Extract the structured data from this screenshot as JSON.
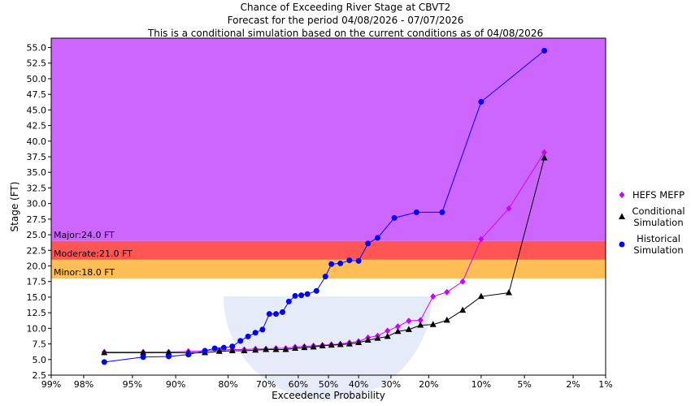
{
  "chart_data": {
    "type": "line",
    "title_lines": [
      "Chance of Exceeding River Stage at CBVT2",
      "Forecast for the period 04/08/2026 - 07/07/2026",
      "This is a conditional simulation based on the current conditions as of 04/08/2026"
    ],
    "xlabel": "Exceedence Probability",
    "ylabel": "Stage (FT)",
    "x_scale": "normal-probability (reversed)",
    "x_ticks": [
      {
        "p": 99,
        "label": "99%"
      },
      {
        "p": 98,
        "label": "98%"
      },
      {
        "p": 95,
        "label": "95%"
      },
      {
        "p": 90,
        "label": "90%"
      },
      {
        "p": 80,
        "label": "80%"
      },
      {
        "p": 70,
        "label": "70%"
      },
      {
        "p": 60,
        "label": "60%"
      },
      {
        "p": 50,
        "label": "50%"
      },
      {
        "p": 40,
        "label": "40%"
      },
      {
        "p": 30,
        "label": "30%"
      },
      {
        "p": 20,
        "label": "20%"
      },
      {
        "p": 10,
        "label": "10%"
      },
      {
        "p": 5,
        "label": "5%"
      },
      {
        "p": 2,
        "label": "2%"
      },
      {
        "p": 1,
        "label": "1%"
      }
    ],
    "ylim": [
      2.5,
      56.5
    ],
    "y_ticks": [
      "2.5",
      "5.0",
      "7.5",
      "10.0",
      "12.5",
      "15.0",
      "17.5",
      "20.0",
      "22.5",
      "25.0",
      "27.5",
      "30.0",
      "32.5",
      "35.0",
      "37.5",
      "40.0",
      "42.5",
      "45.0",
      "47.5",
      "50.0",
      "52.5",
      "55.0"
    ],
    "flood_bands": [
      {
        "label": "Minor:18.0 FT",
        "from": 18.0,
        "to": 21.0,
        "color": "#ffbe55"
      },
      {
        "label": "Moderate:21.0 FT",
        "from": 21.0,
        "to": 24.0,
        "color": "#ff5555"
      },
      {
        "label": "Major:24.0 FT",
        "from": 24.0,
        "to": 56.5,
        "color": "#cc66ff"
      }
    ],
    "series": [
      {
        "name": "HEFS MEFP",
        "color": "#cc00ff",
        "marker": "diamond",
        "points": [
          [
            97,
            6.2
          ],
          [
            94,
            6.2
          ],
          [
            91,
            6.2
          ],
          [
            88,
            6.3
          ],
          [
            85,
            6.4
          ],
          [
            82,
            6.5
          ],
          [
            79,
            6.6
          ],
          [
            76,
            6.6
          ],
          [
            73,
            6.7
          ],
          [
            70,
            6.7
          ],
          [
            67,
            6.8
          ],
          [
            64,
            6.8
          ],
          [
            61,
            7.0
          ],
          [
            58,
            7.1
          ],
          [
            55,
            7.2
          ],
          [
            52,
            7.3
          ],
          [
            49,
            7.4
          ],
          [
            46,
            7.5
          ],
          [
            43,
            7.7
          ],
          [
            40,
            7.9
          ],
          [
            37,
            8.5
          ],
          [
            34,
            8.8
          ],
          [
            31,
            9.6
          ],
          [
            28,
            10.3
          ],
          [
            25,
            11.2
          ],
          [
            22,
            11.3
          ],
          [
            19,
            15.1
          ],
          [
            16,
            15.8
          ],
          [
            13,
            17.5
          ],
          [
            10,
            24.3
          ],
          [
            6.5,
            29.2
          ],
          [
            3.5,
            38.2
          ]
        ]
      },
      {
        "name": "Conditional Simulation",
        "color": "#000000",
        "marker": "triangle",
        "points": [
          [
            97,
            6.1
          ],
          [
            94,
            6.1
          ],
          [
            91,
            6.1
          ],
          [
            88,
            6.1
          ],
          [
            85,
            6.1
          ],
          [
            82,
            6.3
          ],
          [
            79,
            6.4
          ],
          [
            76,
            6.4
          ],
          [
            73,
            6.5
          ],
          [
            70,
            6.6
          ],
          [
            67,
            6.6
          ],
          [
            64,
            6.6
          ],
          [
            61,
            6.8
          ],
          [
            58,
            6.9
          ],
          [
            55,
            7.0
          ],
          [
            52,
            7.2
          ],
          [
            49,
            7.3
          ],
          [
            46,
            7.4
          ],
          [
            43,
            7.5
          ],
          [
            40,
            7.7
          ],
          [
            37,
            8.1
          ],
          [
            34,
            8.4
          ],
          [
            31,
            8.7
          ],
          [
            28,
            9.5
          ],
          [
            25,
            9.8
          ],
          [
            22,
            10.5
          ],
          [
            19,
            10.6
          ],
          [
            16,
            11.3
          ],
          [
            13,
            12.9
          ],
          [
            10,
            15.1
          ],
          [
            6.5,
            15.7
          ],
          [
            3.5,
            37.3
          ]
        ]
      },
      {
        "name": "Historical Simulation",
        "color": "#0000ff",
        "marker": "circle",
        "points": [
          [
            97,
            4.6
          ],
          [
            94,
            5.4
          ],
          [
            91,
            5.5
          ],
          [
            88,
            5.8
          ],
          [
            85,
            6.4
          ],
          [
            83,
            6.8
          ],
          [
            81,
            6.9
          ],
          [
            79,
            7.1
          ],
          [
            77,
            8.0
          ],
          [
            75,
            8.7
          ],
          [
            73,
            9.3
          ],
          [
            71,
            9.8
          ],
          [
            69,
            12.3
          ],
          [
            67,
            12.3
          ],
          [
            65,
            12.6
          ],
          [
            63,
            14.3
          ],
          [
            61,
            15.2
          ],
          [
            59,
            15.3
          ],
          [
            57,
            15.5
          ],
          [
            54,
            16.0
          ],
          [
            51,
            18.3
          ],
          [
            49,
            20.3
          ],
          [
            46,
            20.4
          ],
          [
            43,
            20.9
          ],
          [
            40,
            20.8
          ],
          [
            37,
            23.6
          ],
          [
            34,
            24.5
          ],
          [
            29,
            27.7
          ],
          [
            23,
            28.6
          ],
          [
            17,
            28.6
          ],
          [
            10,
            46.3
          ],
          [
            3.5,
            54.5
          ]
        ]
      }
    ],
    "legend": {
      "position": "right",
      "entries": [
        {
          "label_lines": [
            "HEFS MEFP"
          ],
          "color": "#cc00ff",
          "marker": "diamond"
        },
        {
          "label_lines": [
            "Conditional",
            "Simulation"
          ],
          "color": "#000000",
          "marker": "triangle"
        },
        {
          "label_lines": [
            "Historical",
            "Simulation"
          ],
          "color": "#0000ff",
          "marker": "circle"
        }
      ]
    },
    "grid": false
  }
}
